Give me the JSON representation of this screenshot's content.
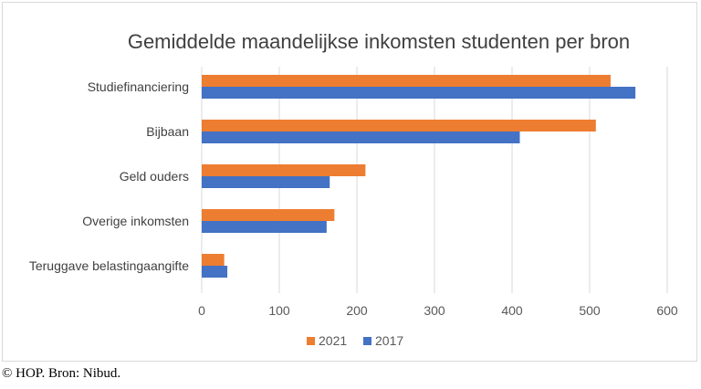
{
  "chart_data": {
    "type": "bar",
    "orientation": "horizontal",
    "title": "Gemiddelde maandelijkse inkomsten studenten per bron",
    "categories": [
      "Studiefinanciering",
      "Bijbaan",
      "Geld ouders",
      "Overige inkomsten",
      "Teruggave belastingaangifte"
    ],
    "series": [
      {
        "name": "2021",
        "color": "#ED7D31",
        "values": [
          527,
          508,
          211,
          171,
          29
        ]
      },
      {
        "name": "2017",
        "color": "#4472C4",
        "values": [
          559,
          410,
          165,
          161,
          33
        ]
      }
    ],
    "xlim": [
      0,
      600
    ],
    "xticks": [
      0,
      100,
      200,
      300,
      400,
      500,
      600
    ],
    "xlabel": "",
    "ylabel": "",
    "grid": "vertical",
    "legend": "bottom"
  },
  "footer": {
    "credit": "© HOP. Bron: Nibud."
  }
}
